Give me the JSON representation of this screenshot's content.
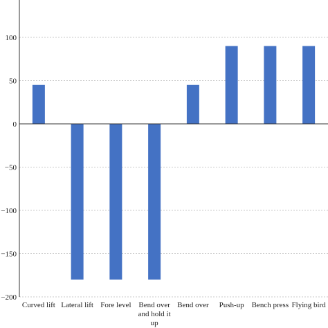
{
  "chart_data": {
    "type": "bar",
    "categories": [
      "Curved lift",
      "Lateral lift",
      "Fore level",
      "Bend over and hold it up",
      "Bend over",
      "Push-up",
      "Bench press",
      "Flying bird"
    ],
    "category_lines": [
      [
        "Curved lift"
      ],
      [
        "Lateral lift"
      ],
      [
        "Fore level"
      ],
      [
        "Bend over",
        "and hold it",
        "up"
      ],
      [
        "Bend over"
      ],
      [
        "Push-up"
      ],
      [
        "Bench press"
      ],
      [
        "Flying bird"
      ]
    ],
    "values": [
      45,
      -180,
      -180,
      -180,
      45,
      90,
      90,
      90
    ],
    "ylim": [
      -200,
      130
    ],
    "yticks": [
      100,
      50,
      0,
      -50,
      -100,
      -150,
      -200
    ],
    "ytick_labels": [
      "100",
      "50",
      "0",
      "−50",
      "−100",
      "−150",
      "−200"
    ],
    "grid": true,
    "bar_color": "#4472c4",
    "title": "",
    "xlabel": "",
    "ylabel": ""
  }
}
